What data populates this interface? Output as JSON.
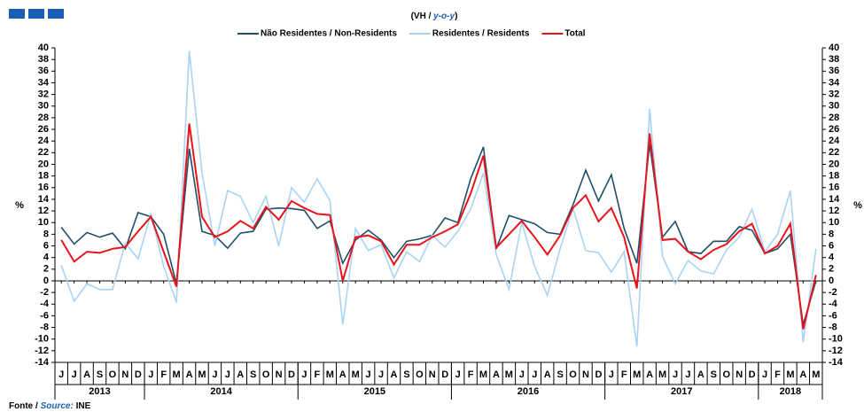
{
  "chart_data": {
    "type": "line",
    "subtitle_parts": [
      "(VH /",
      "y-o-y",
      ")"
    ],
    "source_parts": [
      "Fonte /",
      "Source:",
      "INE"
    ],
    "ylabel": "%",
    "y2label": "%",
    "groups": [
      {
        "year": "2013",
        "months": [
          "J",
          "J",
          "A",
          "S",
          "O",
          "N",
          "D"
        ]
      },
      {
        "year": "2014",
        "months": [
          "J",
          "F",
          "M",
          "A",
          "M",
          "J",
          "J",
          "A",
          "S",
          "O",
          "N",
          "D"
        ]
      },
      {
        "year": "2015",
        "months": [
          "J",
          "F",
          "M",
          "A",
          "M",
          "J",
          "J",
          "A",
          "S",
          "O",
          "N",
          "D"
        ]
      },
      {
        "year": "2016",
        "months": [
          "J",
          "F",
          "M",
          "A",
          "M",
          "J",
          "J",
          "A",
          "S",
          "O",
          "N",
          "D"
        ]
      },
      {
        "year": "2017",
        "months": [
          "J",
          "F",
          "M",
          "A",
          "M",
          "J",
          "J",
          "A",
          "S",
          "O",
          "N",
          "D"
        ]
      },
      {
        "year": "2018",
        "months": [
          "J",
          "F",
          "M",
          "A",
          "M"
        ]
      }
    ],
    "series": [
      {
        "name": "Não Residentes / Non-Residents",
        "color": "#1f4e6b",
        "values": [
          9.2,
          6.3,
          8.3,
          7.5,
          8.2,
          5.5,
          11.7,
          11,
          8,
          -0.5,
          22.7,
          8.5,
          7.8,
          5.6,
          8.2,
          8.5,
          12.3,
          12.5,
          12.4,
          12.1,
          9,
          10.3,
          3,
          7,
          8.7,
          7,
          4,
          6.8,
          7.2,
          7.8,
          10.8,
          10,
          17.5,
          23,
          5.5,
          11.2,
          10.5,
          9.8,
          8.3,
          8,
          13,
          19,
          13.7,
          18.2,
          9,
          3,
          23.5,
          7.5,
          10.2,
          5,
          4.7,
          6.8,
          6.8,
          9.3,
          8.7,
          4.7,
          5.5,
          8,
          -7.5,
          0
        ]
      },
      {
        "name": "Residentes / Residents",
        "color": "#a9d4f5",
        "values": [
          2.7,
          -3.5,
          -0.5,
          -1.5,
          -1.5,
          6.5,
          3.8,
          11.5,
          2.5,
          -3.7,
          39.5,
          18.5,
          6,
          15.5,
          14.5,
          10,
          14.5,
          6,
          16,
          13.5,
          17.5,
          13.8,
          -7.5,
          9,
          5.2,
          6.2,
          0.5,
          5,
          3.3,
          7.8,
          5.8,
          8.5,
          12.3,
          18.5,
          4.5,
          -1.5,
          10,
          2.5,
          -2.5,
          5.5,
          12.5,
          5.2,
          4.8,
          1.5,
          5,
          -11.3,
          29.5,
          4.2,
          -0.5,
          3.5,
          1.7,
          1.2,
          5.3,
          7.5,
          12.3,
          5,
          8,
          15.5,
          -10.5,
          5.5
        ]
      },
      {
        "name": "Total",
        "color": "#e8141c",
        "values": [
          7,
          3.3,
          5,
          4.8,
          5.5,
          5.8,
          8.5,
          11,
          5,
          -1,
          27,
          11,
          7.5,
          8.5,
          10.3,
          9,
          12.7,
          10.5,
          13.7,
          12.5,
          11.5,
          11.3,
          0,
          7.5,
          7.8,
          6.8,
          2.8,
          6.2,
          6.2,
          7.5,
          8.5,
          9.7,
          15,
          21.5,
          5.7,
          8,
          10.3,
          7.5,
          4.5,
          7.8,
          12.5,
          14.7,
          10.2,
          12.5,
          7.5,
          -1.3,
          25.3,
          7,
          7.2,
          5,
          3.7,
          5.3,
          6.3,
          8.5,
          9.8,
          4.7,
          6,
          9.8,
          -8.3,
          1
        ]
      }
    ],
    "ylim": [
      -14,
      40
    ],
    "yticks": [
      -14,
      -12,
      -10,
      -8,
      -6,
      -4,
      -2,
      0,
      2,
      4,
      6,
      8,
      10,
      12,
      14,
      16,
      18,
      20,
      22,
      24,
      26,
      28,
      30,
      32,
      34,
      36,
      38,
      40
    ],
    "y2lim": [
      -14,
      40
    ],
    "y2ticks": [
      -14,
      -12,
      -10,
      -8,
      -6,
      -4,
      -2,
      0,
      2,
      4,
      6,
      8,
      10,
      12,
      14,
      16,
      18,
      20,
      22,
      24,
      26,
      28,
      30,
      32,
      34,
      36,
      38,
      40
    ]
  }
}
